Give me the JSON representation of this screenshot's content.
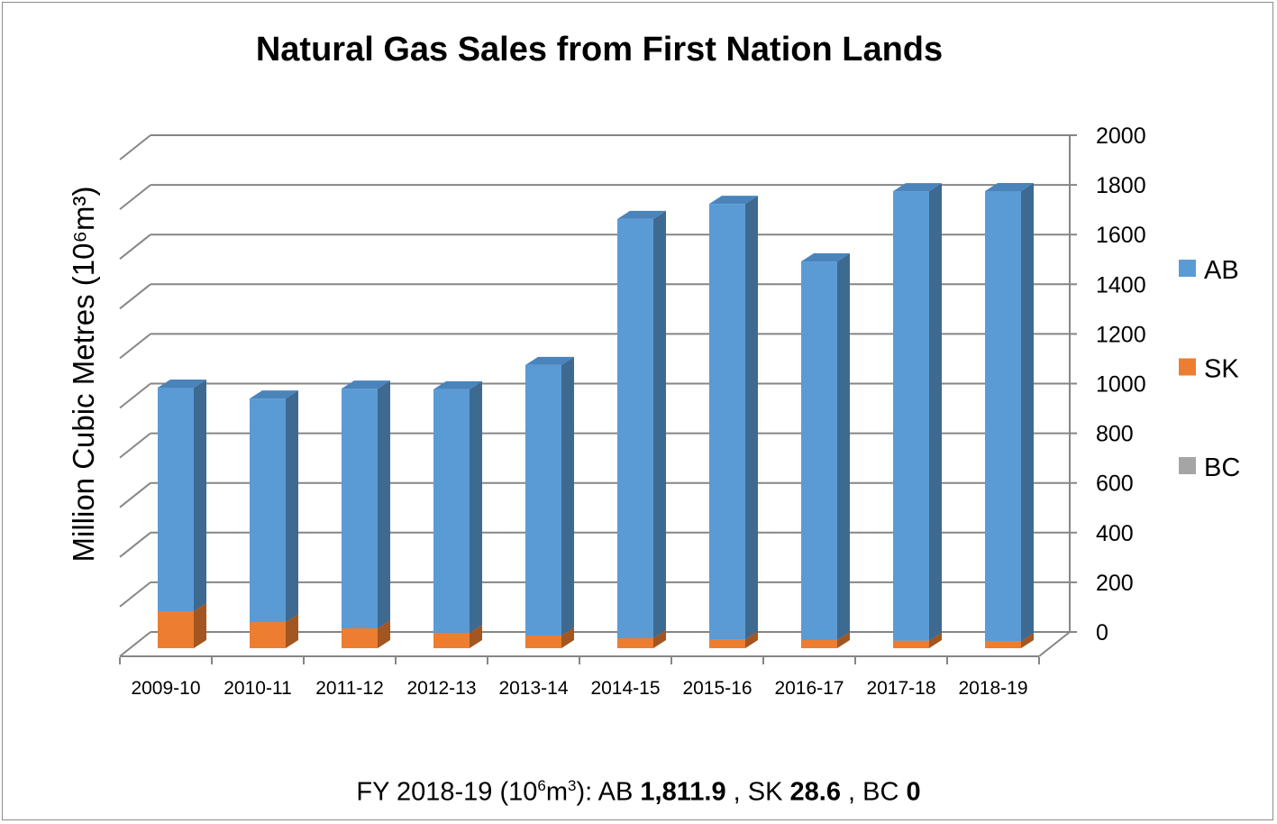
{
  "chart_data": {
    "type": "bar",
    "stacked": true,
    "three_d": true,
    "title": "Natural Gas Sales from First Nation Lands",
    "ylabel": "Million Cubic Metres (10⁶m³)",
    "xlabel": "",
    "ylim": [
      0,
      2000
    ],
    "yticks": [
      0,
      200,
      400,
      600,
      800,
      1000,
      1200,
      1400,
      1600,
      1800,
      2000
    ],
    "grid": true,
    "y_axis_side": "right",
    "legend_position": "right",
    "categories": [
      "2009-10",
      "2010-11",
      "2011-12",
      "2012-13",
      "2013-14",
      "2014-15",
      "2015-16",
      "2016-17",
      "2017-18",
      "2018-19"
    ],
    "series": [
      {
        "name": "AB",
        "color": "#5b9bd5",
        "values": [
          900,
          900,
          965,
          980,
          1089,
          1688,
          1753,
          1524,
          1810,
          1811.9
        ]
      },
      {
        "name": "SK",
        "color": "#ed7d31",
        "values": [
          149,
          105,
          80,
          62,
          51,
          40,
          36,
          33,
          30,
          28.6
        ]
      },
      {
        "name": "BC",
        "color": "#a5a5a5",
        "values": [
          0,
          0,
          0,
          0,
          0,
          0,
          0,
          0,
          0,
          0
        ]
      }
    ]
  },
  "footer": {
    "prefix": "FY 2018-19 (10",
    "sup1": "6",
    "mid": "m",
    "sup2": "3",
    "suffix": "):  AB ",
    "ab_value": "1,811.9",
    "sk_label": " , SK ",
    "sk_value": "28.6",
    "bc_label": " , BC ",
    "bc_value": "0"
  }
}
